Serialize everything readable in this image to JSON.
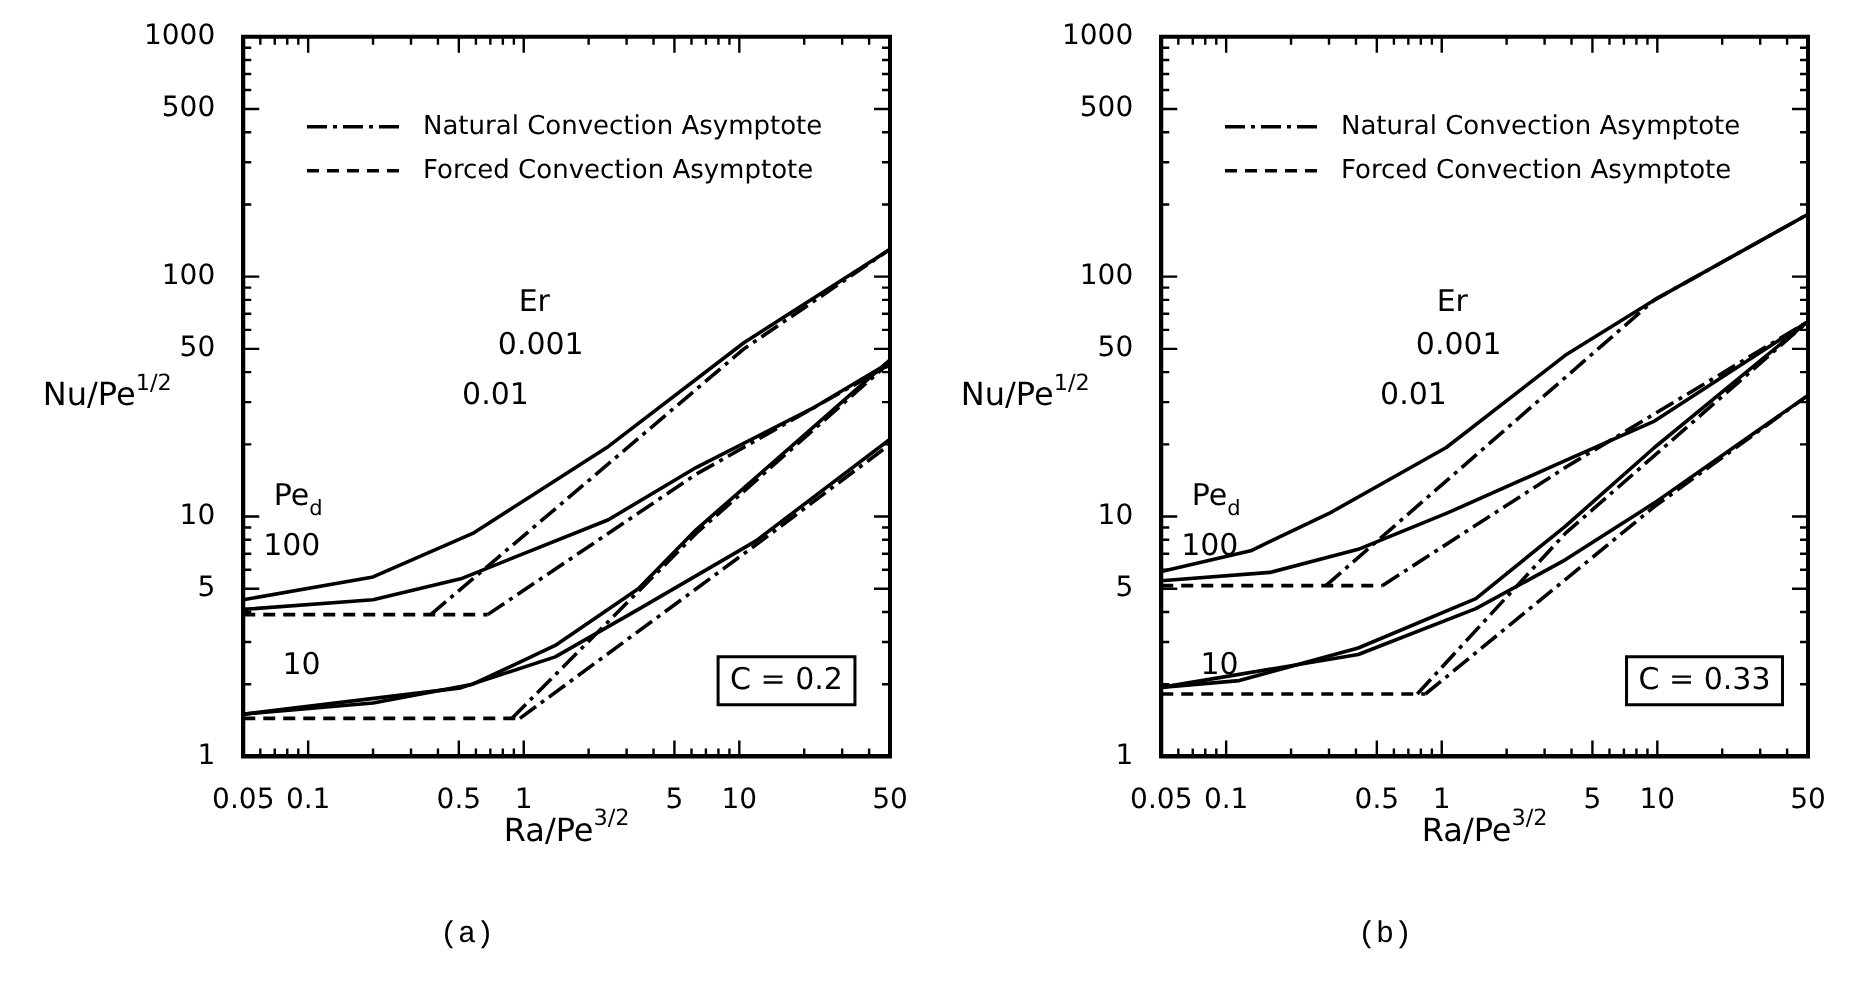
{
  "chart_data": [
    {
      "type": "line",
      "title": "(a)",
      "xlabel": "Ra/Pe$^{3/2}$",
      "ylabel": "Nu/Pe$^{1/2}$",
      "log": "xy",
      "legend": "top",
      "marker": "none",
      "line_style": "solid",
      "xlim": [
        0.05,
        50
      ],
      "ylim": [
        1,
        1000
      ],
      "xticks": [
        0.05,
        {
          "value": 0.06,
          "label": null
        },
        {
          "value": 0.07,
          "label": null
        },
        {
          "value": 0.08,
          "label": null
        },
        {
          "value": 0.09,
          "label": null
        },
        0.1,
        {
          "value": 0.2,
          "label": null
        },
        {
          "value": 0.3,
          "label": null
        },
        {
          "value": 0.4,
          "label": null
        },
        0.5,
        {
          "value": 0.6,
          "label": null
        },
        {
          "value": 0.7,
          "label": null
        },
        {
          "value": 0.8,
          "label": null
        },
        {
          "value": 0.9,
          "label": null
        },
        1,
        {
          "value": 2,
          "label": null
        },
        {
          "value": 3,
          "label": null
        },
        {
          "value": 4,
          "label": null
        },
        5,
        {
          "value": 6,
          "label": null
        },
        {
          "value": 7,
          "label": null
        },
        {
          "value": 8,
          "label": null
        },
        {
          "value": 9,
          "label": null
        },
        10,
        {
          "value": 20,
          "label": null
        },
        {
          "value": 30,
          "label": null
        },
        {
          "value": 40,
          "label": null
        },
        50
      ],
      "yticks": [
        1,
        {
          "value": 2,
          "label": null
        },
        {
          "value": 3,
          "label": null
        },
        {
          "value": 4,
          "label": null
        },
        5,
        {
          "value": 6,
          "label": null
        },
        {
          "value": 7,
          "label": null
        },
        {
          "value": 8,
          "label": null
        },
        {
          "value": 9,
          "label": null
        },
        10,
        {
          "value": 20,
          "label": null
        },
        {
          "value": 30,
          "label": null
        },
        {
          "value": 40,
          "label": null
        },
        50,
        {
          "value": 60,
          "label": null
        },
        {
          "value": 70,
          "label": null
        },
        {
          "value": 80,
          "label": null
        },
        {
          "value": 90,
          "label": null
        },
        100,
        {
          "value": 200,
          "label": null
        },
        {
          "value": 300,
          "label": null
        },
        {
          "value": 400,
          "label": null
        },
        500,
        {
          "value": 600,
          "label": null
        },
        {
          "value": 700,
          "label": null
        },
        {
          "value": 800,
          "label": null
        },
        {
          "value": 900,
          "label": null
        },
        1000
      ],
      "series": [
        {
          "color": "#000000",
          "x": [
            0.05,
            0.2,
            0.58,
            2.47,
            10.5,
            50
          ],
          "values": [
            4.5,
            5.6,
            8.5,
            19.6,
            53,
            130
          ]
        },
        {
          "color": "#000000",
          "x": [
            0.05,
            0.2,
            0.51,
            2.47,
            6.3,
            22.4,
            50
          ],
          "values": [
            4.1,
            4.5,
            5.5,
            9.7,
            16,
            28.6,
            44
          ]
        },
        {
          "color": "#000000",
          "x": [
            0.05,
            0.2,
            0.58,
            1.4,
            3.4,
            6.3,
            50
          ],
          "values": [
            1.5,
            1.67,
            2.0,
            2.9,
            5.0,
            8.8,
            45
          ]
        },
        {
          "color": "#000000",
          "x": [
            0.05,
            0.51,
            1.4,
            3.4,
            11.9,
            50
          ],
          "values": [
            1.5,
            1.93,
            2.6,
            4.1,
            7.9,
            21
          ]
        },
        {
          "name": "Natural Convection Asymptote",
          "color": "#000000",
          "line_style": "dashdot",
          "x": [
            0.37,
            10.5,
            50
          ],
          "values": [
            3.9,
            50,
            130
          ]
        },
        {
          "color": "#000000",
          "line_style": "dashdot",
          "x": [
            0.68,
            6.3,
            50
          ],
          "values": [
            3.9,
            15,
            43
          ]
        },
        {
          "color": "#000000",
          "line_style": "dashdot",
          "x": [
            0.88,
            6.3,
            50
          ],
          "values": [
            1.44,
            8.5,
            44
          ]
        },
        {
          "color": "#000000",
          "line_style": "dashdot",
          "x": [
            0.96,
            11.9,
            50
          ],
          "values": [
            1.44,
            7.6,
            20
          ]
        },
        {
          "name": "Forced Convection Asymptote",
          "color": "#000000",
          "line_style": "dashed",
          "x": [
            0.05,
            0.68
          ],
          "values": [
            3.9,
            3.9
          ]
        },
        {
          "color": "#000000",
          "line_style": "dashed",
          "x": [
            0.05,
            0.96
          ],
          "values": [
            1.44,
            1.44
          ]
        }
      ],
      "annotations": [
        "Pe$_{d}$",
        "100",
        "10",
        "Er",
        "0.001",
        "0.01",
        "C = 0.2"
      ]
    },
    {
      "type": "line",
      "title": "(b)",
      "xlabel": "Ra/Pe$^{3/2}$",
      "ylabel": "Nu/Pe$^{1/2}$",
      "log": "xy",
      "legend": "top",
      "marker": "none",
      "line_style": "solid",
      "xlim": [
        0.05,
        50
      ],
      "ylim": [
        1,
        1000
      ],
      "xticks": [
        0.05,
        {
          "value": 0.06,
          "label": null
        },
        {
          "value": 0.07,
          "label": null
        },
        {
          "value": 0.08,
          "label": null
        },
        {
          "value": 0.09,
          "label": null
        },
        0.1,
        {
          "value": 0.2,
          "label": null
        },
        {
          "value": 0.3,
          "label": null
        },
        {
          "value": 0.4,
          "label": null
        },
        0.5,
        {
          "value": 0.6,
          "label": null
        },
        {
          "value": 0.7,
          "label": null
        },
        {
          "value": 0.8,
          "label": null
        },
        {
          "value": 0.9,
          "label": null
        },
        1,
        {
          "value": 2,
          "label": null
        },
        {
          "value": 3,
          "label": null
        },
        {
          "value": 4,
          "label": null
        },
        5,
        {
          "value": 6,
          "label": null
        },
        {
          "value": 7,
          "label": null
        },
        {
          "value": 8,
          "label": null
        },
        {
          "value": 9,
          "label": null
        },
        10,
        {
          "value": 20,
          "label": null
        },
        {
          "value": 30,
          "label": null
        },
        {
          "value": 40,
          "label": null
        },
        50
      ],
      "yticks": [
        1,
        {
          "value": 2,
          "label": null
        },
        {
          "value": 3,
          "label": null
        },
        {
          "value": 4,
          "label": null
        },
        5,
        {
          "value": 6,
          "label": null
        },
        {
          "value": 7,
          "label": null
        },
        {
          "value": 8,
          "label": null
        },
        {
          "value": 9,
          "label": null
        },
        10,
        {
          "value": 20,
          "label": null
        },
        {
          "value": 30,
          "label": null
        },
        {
          "value": 40,
          "label": null
        },
        50,
        {
          "value": 60,
          "label": null
        },
        {
          "value": 70,
          "label": null
        },
        {
          "value": 80,
          "label": null
        },
        {
          "value": 90,
          "label": null
        },
        100,
        {
          "value": 200,
          "label": null
        },
        {
          "value": 300,
          "label": null
        },
        {
          "value": 400,
          "label": null
        },
        500,
        {
          "value": 600,
          "label": null
        },
        {
          "value": 700,
          "label": null
        },
        {
          "value": 800,
          "label": null
        },
        {
          "value": 900,
          "label": null
        },
        1000
      ],
      "series": [
        {
          "color": "#000000",
          "x": [
            0.05,
            0.13,
            0.3,
            1.05,
            3.74,
            9.7,
            50
          ],
          "values": [
            5.9,
            7.2,
            10.3,
            19.4,
            47,
            80,
            182
          ]
        },
        {
          "color": "#000000",
          "x": [
            0.05,
            0.16,
            0.41,
            1.05,
            3.74,
            9.7,
            50
          ],
          "values": [
            5.4,
            5.85,
            7.3,
            10.3,
            17.1,
            25,
            65
          ]
        },
        {
          "color": "#000000",
          "x": [
            0.05,
            0.115,
            0.41,
            1.44,
            3.74,
            9.7,
            50
          ],
          "values": [
            1.94,
            2.07,
            2.83,
            4.55,
            9.1,
            19.4,
            65
          ]
        },
        {
          "color": "#000000",
          "x": [
            0.05,
            0.41,
            1.44,
            3.74,
            9.7,
            50
          ],
          "values": [
            1.94,
            2.66,
            4.13,
            6.6,
            11.4,
            32
          ]
        },
        {
          "name": "Natural Convection Asymptote",
          "color": "#000000",
          "line_style": "dashdot",
          "x": [
            0.29,
            9.7,
            50
          ],
          "values": [
            5.15,
            80,
            182
          ]
        },
        {
          "color": "#000000",
          "line_style": "dashdot",
          "x": [
            0.53,
            3.74,
            50
          ],
          "values": [
            5.15,
            16,
            65
          ]
        },
        {
          "color": "#000000",
          "line_style": "dashdot",
          "x": [
            0.77,
            3.74,
            50
          ],
          "values": [
            1.82,
            8.5,
            65
          ]
        },
        {
          "color": "#000000",
          "line_style": "dashdot",
          "x": [
            0.84,
            9.7,
            50
          ],
          "values": [
            1.82,
            11,
            32
          ]
        },
        {
          "name": "Forced Convection Asymptote",
          "color": "#000000",
          "line_style": "dashed",
          "x": [
            0.05,
            0.53
          ],
          "values": [
            5.15,
            5.15
          ]
        },
        {
          "color": "#000000",
          "line_style": "dashed",
          "x": [
            0.05,
            0.84
          ],
          "values": [
            1.82,
            1.82
          ]
        }
      ],
      "annotations": [
        "Pe$_{d}$",
        "100",
        "10",
        "Er",
        "0.001",
        "0.01",
        "C = 0.33"
      ]
    }
  ]
}
